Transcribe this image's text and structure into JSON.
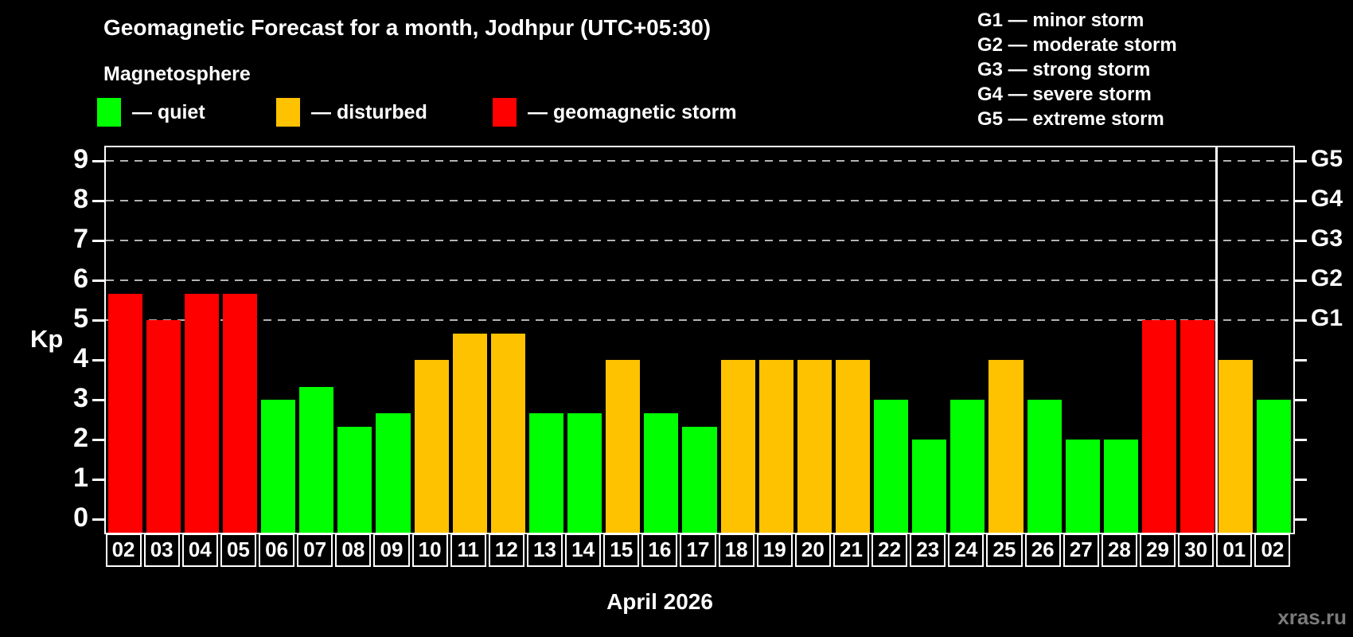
{
  "header": {
    "title": "Geomagnetic Forecast for a month, Jodhpur (UTC+05:30)",
    "subtitle": "Magnetosphere"
  },
  "legend": {
    "items": [
      {
        "name": "quiet",
        "label": "— quiet",
        "color": "#00ff00"
      },
      {
        "name": "disturbed",
        "label": "— disturbed",
        "color": "#ffc200"
      },
      {
        "name": "storm",
        "label": "— geomagnetic storm",
        "color": "#ff0000"
      }
    ]
  },
  "g_legend": [
    "G1 — minor storm",
    "G2 — moderate storm",
    "G3 — strong storm",
    "G4 — severe storm",
    "G5 — extreme storm"
  ],
  "chart_data": {
    "type": "bar",
    "title": "Geomagnetic Forecast for a month, Jodhpur (UTC+05:30)",
    "xlabel": "April 2026",
    "ylabel": "Kp",
    "ylim": [
      -0.34,
      9.34
    ],
    "y_ticks": [
      0,
      1,
      2,
      3,
      4,
      5,
      6,
      7,
      8,
      9
    ],
    "gridline_levels": [
      5,
      6,
      7,
      8,
      9
    ],
    "right_axis": [
      {
        "level": 5,
        "label": "G1"
      },
      {
        "level": 6,
        "label": "G2"
      },
      {
        "level": 7,
        "label": "G3"
      },
      {
        "level": 8,
        "label": "G4"
      },
      {
        "level": 9,
        "label": "G5"
      }
    ],
    "categories": [
      "02",
      "03",
      "04",
      "05",
      "06",
      "07",
      "08",
      "09",
      "10",
      "11",
      "12",
      "13",
      "14",
      "15",
      "16",
      "17",
      "18",
      "19",
      "20",
      "21",
      "22",
      "23",
      "24",
      "25",
      "26",
      "27",
      "28",
      "29",
      "30",
      "01",
      "02"
    ],
    "values": [
      5.67,
      5.0,
      5.67,
      5.67,
      3.0,
      3.33,
      2.33,
      2.67,
      4.0,
      4.67,
      4.67,
      2.67,
      2.67,
      4.0,
      2.67,
      2.33,
      4.0,
      4.0,
      4.0,
      4.0,
      3.0,
      2.0,
      3.0,
      4.0,
      3.0,
      2.0,
      2.0,
      5.0,
      5.0,
      4.0,
      3.0
    ],
    "statuses": [
      "storm",
      "storm",
      "storm",
      "storm",
      "quiet",
      "quiet",
      "quiet",
      "quiet",
      "disturbed",
      "disturbed",
      "disturbed",
      "quiet",
      "quiet",
      "disturbed",
      "quiet",
      "quiet",
      "disturbed",
      "disturbed",
      "disturbed",
      "disturbed",
      "quiet",
      "quiet",
      "quiet",
      "disturbed",
      "quiet",
      "quiet",
      "quiet",
      "storm",
      "storm",
      "disturbed",
      "quiet"
    ],
    "status_colors": {
      "quiet": "#00ff00",
      "disturbed": "#ffc200",
      "storm": "#ff0000"
    },
    "month_separator_after_index": 28,
    "grid_on": true,
    "legend_position": "top-left"
  },
  "footer": {
    "month_label": "April 2026",
    "watermark": "xras.ru"
  }
}
